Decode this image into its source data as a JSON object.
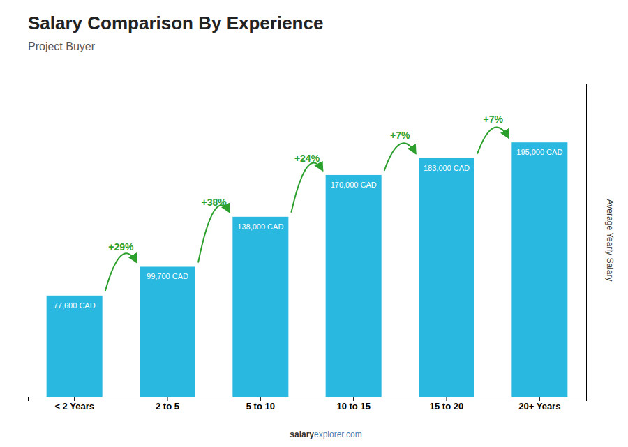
{
  "chart_data": {
    "type": "bar",
    "title": "Salary Comparison By Experience",
    "subtitle": "Project Buyer",
    "ylabel": "Average Yearly Salary",
    "categories": [
      "< 2 Years",
      "2 to 5",
      "5 to 10",
      "10 to 15",
      "15 to 20",
      "20+ Years"
    ],
    "values": [
      77600,
      99700,
      138000,
      170000,
      183000,
      195000
    ],
    "value_labels": [
      "77,600 CAD",
      "99,700 CAD",
      "138,000 CAD",
      "170,000 CAD",
      "183,000 CAD",
      "195,000 CAD"
    ],
    "data_labels": true,
    "color": "#29B8E0",
    "ylim": [
      0,
      240000
    ],
    "tick_labels": "x",
    "annotations": [
      "+29%",
      "+38%",
      "+24%",
      "+7%",
      "+7%"
    ],
    "watermark": [
      "salary",
      "explorer.com"
    ]
  }
}
